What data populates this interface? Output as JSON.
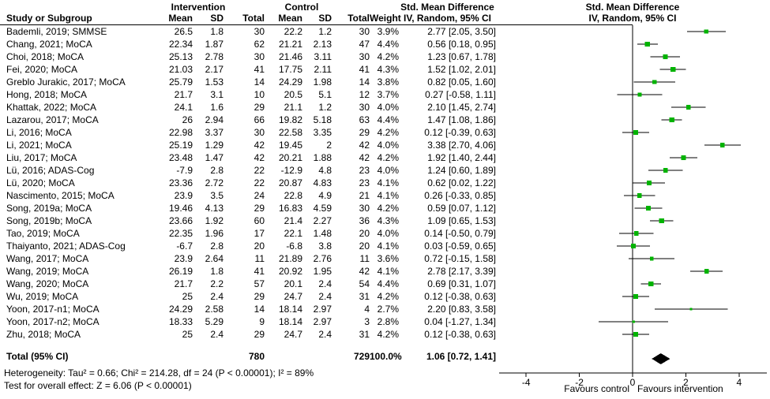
{
  "table": {
    "header": {
      "group_intervention": "Intervention",
      "group_control": "Control",
      "smd_line1": "Std. Mean Difference",
      "smd_line2": "IV, Random, 95% CI",
      "study": "Study or Subgroup",
      "mean": "Mean",
      "sd": "SD",
      "total": "Total",
      "weight": "Weight"
    },
    "plot_header_line1": "Std. Mean Difference",
    "plot_header_line2": "IV, Random, 95% CI"
  },
  "chart_data": {
    "type": "forest",
    "effect_measure": "Std. Mean Difference, IV, Random, 95% CI",
    "studies": [
      {
        "label": "Bademli, 2019; SMMSE",
        "i_mean": "26.5",
        "i_sd": "1.8",
        "i_total": "30",
        "c_mean": "22.2",
        "c_sd": "1.2",
        "c_total": "30",
        "weight": "3.9%",
        "smd": "2.77 [2.05, 3.50]",
        "effect": 2.77,
        "lo": 2.05,
        "hi": 3.5,
        "w": 3.9
      },
      {
        "label": "Chang, 2021; MoCA",
        "i_mean": "22.34",
        "i_sd": "1.87",
        "i_total": "62",
        "c_mean": "21.21",
        "c_sd": "2.13",
        "c_total": "47",
        "weight": "4.4%",
        "smd": "0.56 [0.18, 0.95]",
        "effect": 0.56,
        "lo": 0.18,
        "hi": 0.95,
        "w": 4.4
      },
      {
        "label": "Choi, 2018; MoCA",
        "i_mean": "25.13",
        "i_sd": "2.78",
        "i_total": "30",
        "c_mean": "21.46",
        "c_sd": "3.11",
        "c_total": "30",
        "weight": "4.2%",
        "smd": "1.23 [0.67, 1.78]",
        "effect": 1.23,
        "lo": 0.67,
        "hi": 1.78,
        "w": 4.2
      },
      {
        "label": "Fei, 2020; MoCA",
        "i_mean": "21.03",
        "i_sd": "2.17",
        "i_total": "41",
        "c_mean": "17.75",
        "c_sd": "2.11",
        "c_total": "41",
        "weight": "4.3%",
        "smd": "1.52 [1.02, 2.01]",
        "effect": 1.52,
        "lo": 1.02,
        "hi": 2.01,
        "w": 4.3
      },
      {
        "label": "Greblo Jurakic, 2017; MoCA",
        "i_mean": "25.79",
        "i_sd": "1.53",
        "i_total": "14",
        "c_mean": "24.29",
        "c_sd": "1.98",
        "c_total": "14",
        "weight": "3.8%",
        "smd": "0.82 [0.05, 1.60]",
        "effect": 0.82,
        "lo": 0.05,
        "hi": 1.6,
        "w": 3.8
      },
      {
        "label": "Hong, 2018; MoCA",
        "i_mean": "21.7",
        "i_sd": "3.1",
        "i_total": "10",
        "c_mean": "20.5",
        "c_sd": "5.1",
        "c_total": "12",
        "weight": "3.7%",
        "smd": "0.27 [-0.58, 1.11]",
        "effect": 0.27,
        "lo": -0.58,
        "hi": 1.11,
        "w": 3.7
      },
      {
        "label": "Khattak, 2022; MoCA",
        "i_mean": "24.1",
        "i_sd": "1.6",
        "i_total": "29",
        "c_mean": "21.1",
        "c_sd": "1.2",
        "c_total": "30",
        "weight": "4.0%",
        "smd": "2.10 [1.45, 2.74]",
        "effect": 2.1,
        "lo": 1.45,
        "hi": 2.74,
        "w": 4.0
      },
      {
        "label": "Lazarou, 2017; MoCA",
        "i_mean": "26",
        "i_sd": "2.94",
        "i_total": "66",
        "c_mean": "19.82",
        "c_sd": "5.18",
        "c_total": "63",
        "weight": "4.4%",
        "smd": "1.47 [1.08, 1.86]",
        "effect": 1.47,
        "lo": 1.08,
        "hi": 1.86,
        "w": 4.4
      },
      {
        "label": "Li, 2016; MoCA",
        "i_mean": "22.98",
        "i_sd": "3.37",
        "i_total": "30",
        "c_mean": "22.58",
        "c_sd": "3.35",
        "c_total": "29",
        "weight": "4.2%",
        "smd": "0.12 [-0.39, 0.63]",
        "effect": 0.12,
        "lo": -0.39,
        "hi": 0.63,
        "w": 4.2
      },
      {
        "label": "Li, 2021; MoCA",
        "i_mean": "25.19",
        "i_sd": "1.29",
        "i_total": "42",
        "c_mean": "19.45",
        "c_sd": "2",
        "c_total": "42",
        "weight": "4.0%",
        "smd": "3.38 [2.70, 4.06]",
        "effect": 3.38,
        "lo": 2.7,
        "hi": 4.06,
        "w": 4.0
      },
      {
        "label": "Liu, 2017; MoCA",
        "i_mean": "23.48",
        "i_sd": "1.47",
        "i_total": "42",
        "c_mean": "20.21",
        "c_sd": "1.88",
        "c_total": "42",
        "weight": "4.2%",
        "smd": "1.92 [1.40, 2.44]",
        "effect": 1.92,
        "lo": 1.4,
        "hi": 2.44,
        "w": 4.2
      },
      {
        "label": "Lü, 2016; ADAS-Cog",
        "i_mean": "-7.9",
        "i_sd": "2.8",
        "i_total": "22",
        "c_mean": "-12.9",
        "c_sd": "4.8",
        "c_total": "23",
        "weight": "4.0%",
        "smd": "1.24 [0.60, 1.89]",
        "effect": 1.24,
        "lo": 0.6,
        "hi": 1.89,
        "w": 4.0
      },
      {
        "label": "Lü, 2020; MoCA",
        "i_mean": "23.36",
        "i_sd": "2.72",
        "i_total": "22",
        "c_mean": "20.87",
        "c_sd": "4.83",
        "c_total": "23",
        "weight": "4.1%",
        "smd": "0.62 [0.02, 1.22]",
        "effect": 0.62,
        "lo": 0.02,
        "hi": 1.22,
        "w": 4.1
      },
      {
        "label": "Nascimento, 2015; MoCA",
        "i_mean": "23.9",
        "i_sd": "3.5",
        "i_total": "24",
        "c_mean": "22.8",
        "c_sd": "4.9",
        "c_total": "21",
        "weight": "4.1%",
        "smd": "0.26 [-0.33, 0.85]",
        "effect": 0.26,
        "lo": -0.33,
        "hi": 0.85,
        "w": 4.1
      },
      {
        "label": "Song, 2019a; MoCA",
        "i_mean": "19.46",
        "i_sd": "4.13",
        "i_total": "29",
        "c_mean": "16.83",
        "c_sd": "4.59",
        "c_total": "30",
        "weight": "4.2%",
        "smd": "0.59 [0.07, 1.12]",
        "effect": 0.59,
        "lo": 0.07,
        "hi": 1.12,
        "w": 4.2
      },
      {
        "label": "Song, 2019b; MoCA",
        "i_mean": "23.66",
        "i_sd": "1.92",
        "i_total": "60",
        "c_mean": "21.4",
        "c_sd": "2.27",
        "c_total": "36",
        "weight": "4.3%",
        "smd": "1.09 [0.65, 1.53]",
        "effect": 1.09,
        "lo": 0.65,
        "hi": 1.53,
        "w": 4.3
      },
      {
        "label": "Tao, 2019; MoCA",
        "i_mean": "22.35",
        "i_sd": "1.96",
        "i_total": "17",
        "c_mean": "22.1",
        "c_sd": "1.48",
        "c_total": "20",
        "weight": "4.0%",
        "smd": "0.14 [-0.50, 0.79]",
        "effect": 0.14,
        "lo": -0.5,
        "hi": 0.79,
        "w": 4.0
      },
      {
        "label": "Thaiyanto, 2021; ADAS-Cog",
        "i_mean": "-6.7",
        "i_sd": "2.8",
        "i_total": "20",
        "c_mean": "-6.8",
        "c_sd": "3.8",
        "c_total": "20",
        "weight": "4.1%",
        "smd": "0.03 [-0.59, 0.65]",
        "effect": 0.03,
        "lo": -0.59,
        "hi": 0.65,
        "w": 4.1
      },
      {
        "label": "Wang, 2017; MoCA",
        "i_mean": "23.9",
        "i_sd": "2.64",
        "i_total": "11",
        "c_mean": "21.89",
        "c_sd": "2.76",
        "c_total": "11",
        "weight": "3.6%",
        "smd": "0.72 [-0.15, 1.58]",
        "effect": 0.72,
        "lo": -0.15,
        "hi": 1.58,
        "w": 3.6
      },
      {
        "label": "Wang, 2019; MoCA",
        "i_mean": "26.19",
        "i_sd": "1.8",
        "i_total": "41",
        "c_mean": "20.92",
        "c_sd": "1.95",
        "c_total": "42",
        "weight": "4.1%",
        "smd": "2.78 [2.17, 3.39]",
        "effect": 2.78,
        "lo": 2.17,
        "hi": 3.39,
        "w": 4.1
      },
      {
        "label": "Wang, 2020; MoCA",
        "i_mean": "21.7",
        "i_sd": "2.2",
        "i_total": "57",
        "c_mean": "20.1",
        "c_sd": "2.4",
        "c_total": "54",
        "weight": "4.4%",
        "smd": "0.69 [0.31, 1.07]",
        "effect": 0.69,
        "lo": 0.31,
        "hi": 1.07,
        "w": 4.4
      },
      {
        "label": "Wu, 2019; MoCA",
        "i_mean": "25",
        "i_sd": "2.4",
        "i_total": "29",
        "c_mean": "24.7",
        "c_sd": "2.4",
        "c_total": "31",
        "weight": "4.2%",
        "smd": "0.12 [-0.38, 0.63]",
        "effect": 0.12,
        "lo": -0.38,
        "hi": 0.63,
        "w": 4.2
      },
      {
        "label": "Yoon, 2017-n1; MoCA",
        "i_mean": "24.29",
        "i_sd": "2.58",
        "i_total": "14",
        "c_mean": "18.14",
        "c_sd": "2.97",
        "c_total": "4",
        "weight": "2.7%",
        "smd": "2.20 [0.83, 3.58]",
        "effect": 2.2,
        "lo": 0.83,
        "hi": 3.58,
        "w": 2.7
      },
      {
        "label": "Yoon, 2017-n2; MoCA",
        "i_mean": "18.33",
        "i_sd": "5.29",
        "i_total": "9",
        "c_mean": "18.14",
        "c_sd": "2.97",
        "c_total": "3",
        "weight": "2.8%",
        "smd": "0.04 [-1.27, 1.34]",
        "effect": 0.04,
        "lo": -1.27,
        "hi": 1.34,
        "w": 2.8
      },
      {
        "label": "Zhu, 2018; MoCA",
        "i_mean": "25",
        "i_sd": "2.4",
        "i_total": "29",
        "c_mean": "24.7",
        "c_sd": "2.4",
        "c_total": "31",
        "weight": "4.2%",
        "smd": "0.12 [-0.38, 0.63]",
        "effect": 0.12,
        "lo": -0.38,
        "hi": 0.63,
        "w": 4.2
      }
    ],
    "total": {
      "label": "Total (95% CI)",
      "i_total": "780",
      "c_total": "729",
      "weight": "100.0%",
      "smd": "1.06 [0.72, 1.41]",
      "effect": 1.06,
      "lo": 0.72,
      "hi": 1.41
    },
    "footnotes": [
      "Heterogeneity: Tau² = 0.66; Chi² = 214.28, df = 24 (P < 0.00001); I² = 89%",
      "Test for overall effect: Z = 6.06 (P < 0.00001)"
    ],
    "axis": {
      "min": -5,
      "max": 5,
      "tick_values": [
        -4,
        -2,
        0,
        2,
        4
      ],
      "tick_labels": [
        "-4",
        "-2",
        "0",
        "2",
        "4"
      ],
      "left_label": "Favours control",
      "right_label": "Favours intervention",
      "grid": false
    },
    "colors": {
      "marker": "#00b300",
      "line": "#000000",
      "diamond": "#000000",
      "text": "#000000"
    }
  }
}
